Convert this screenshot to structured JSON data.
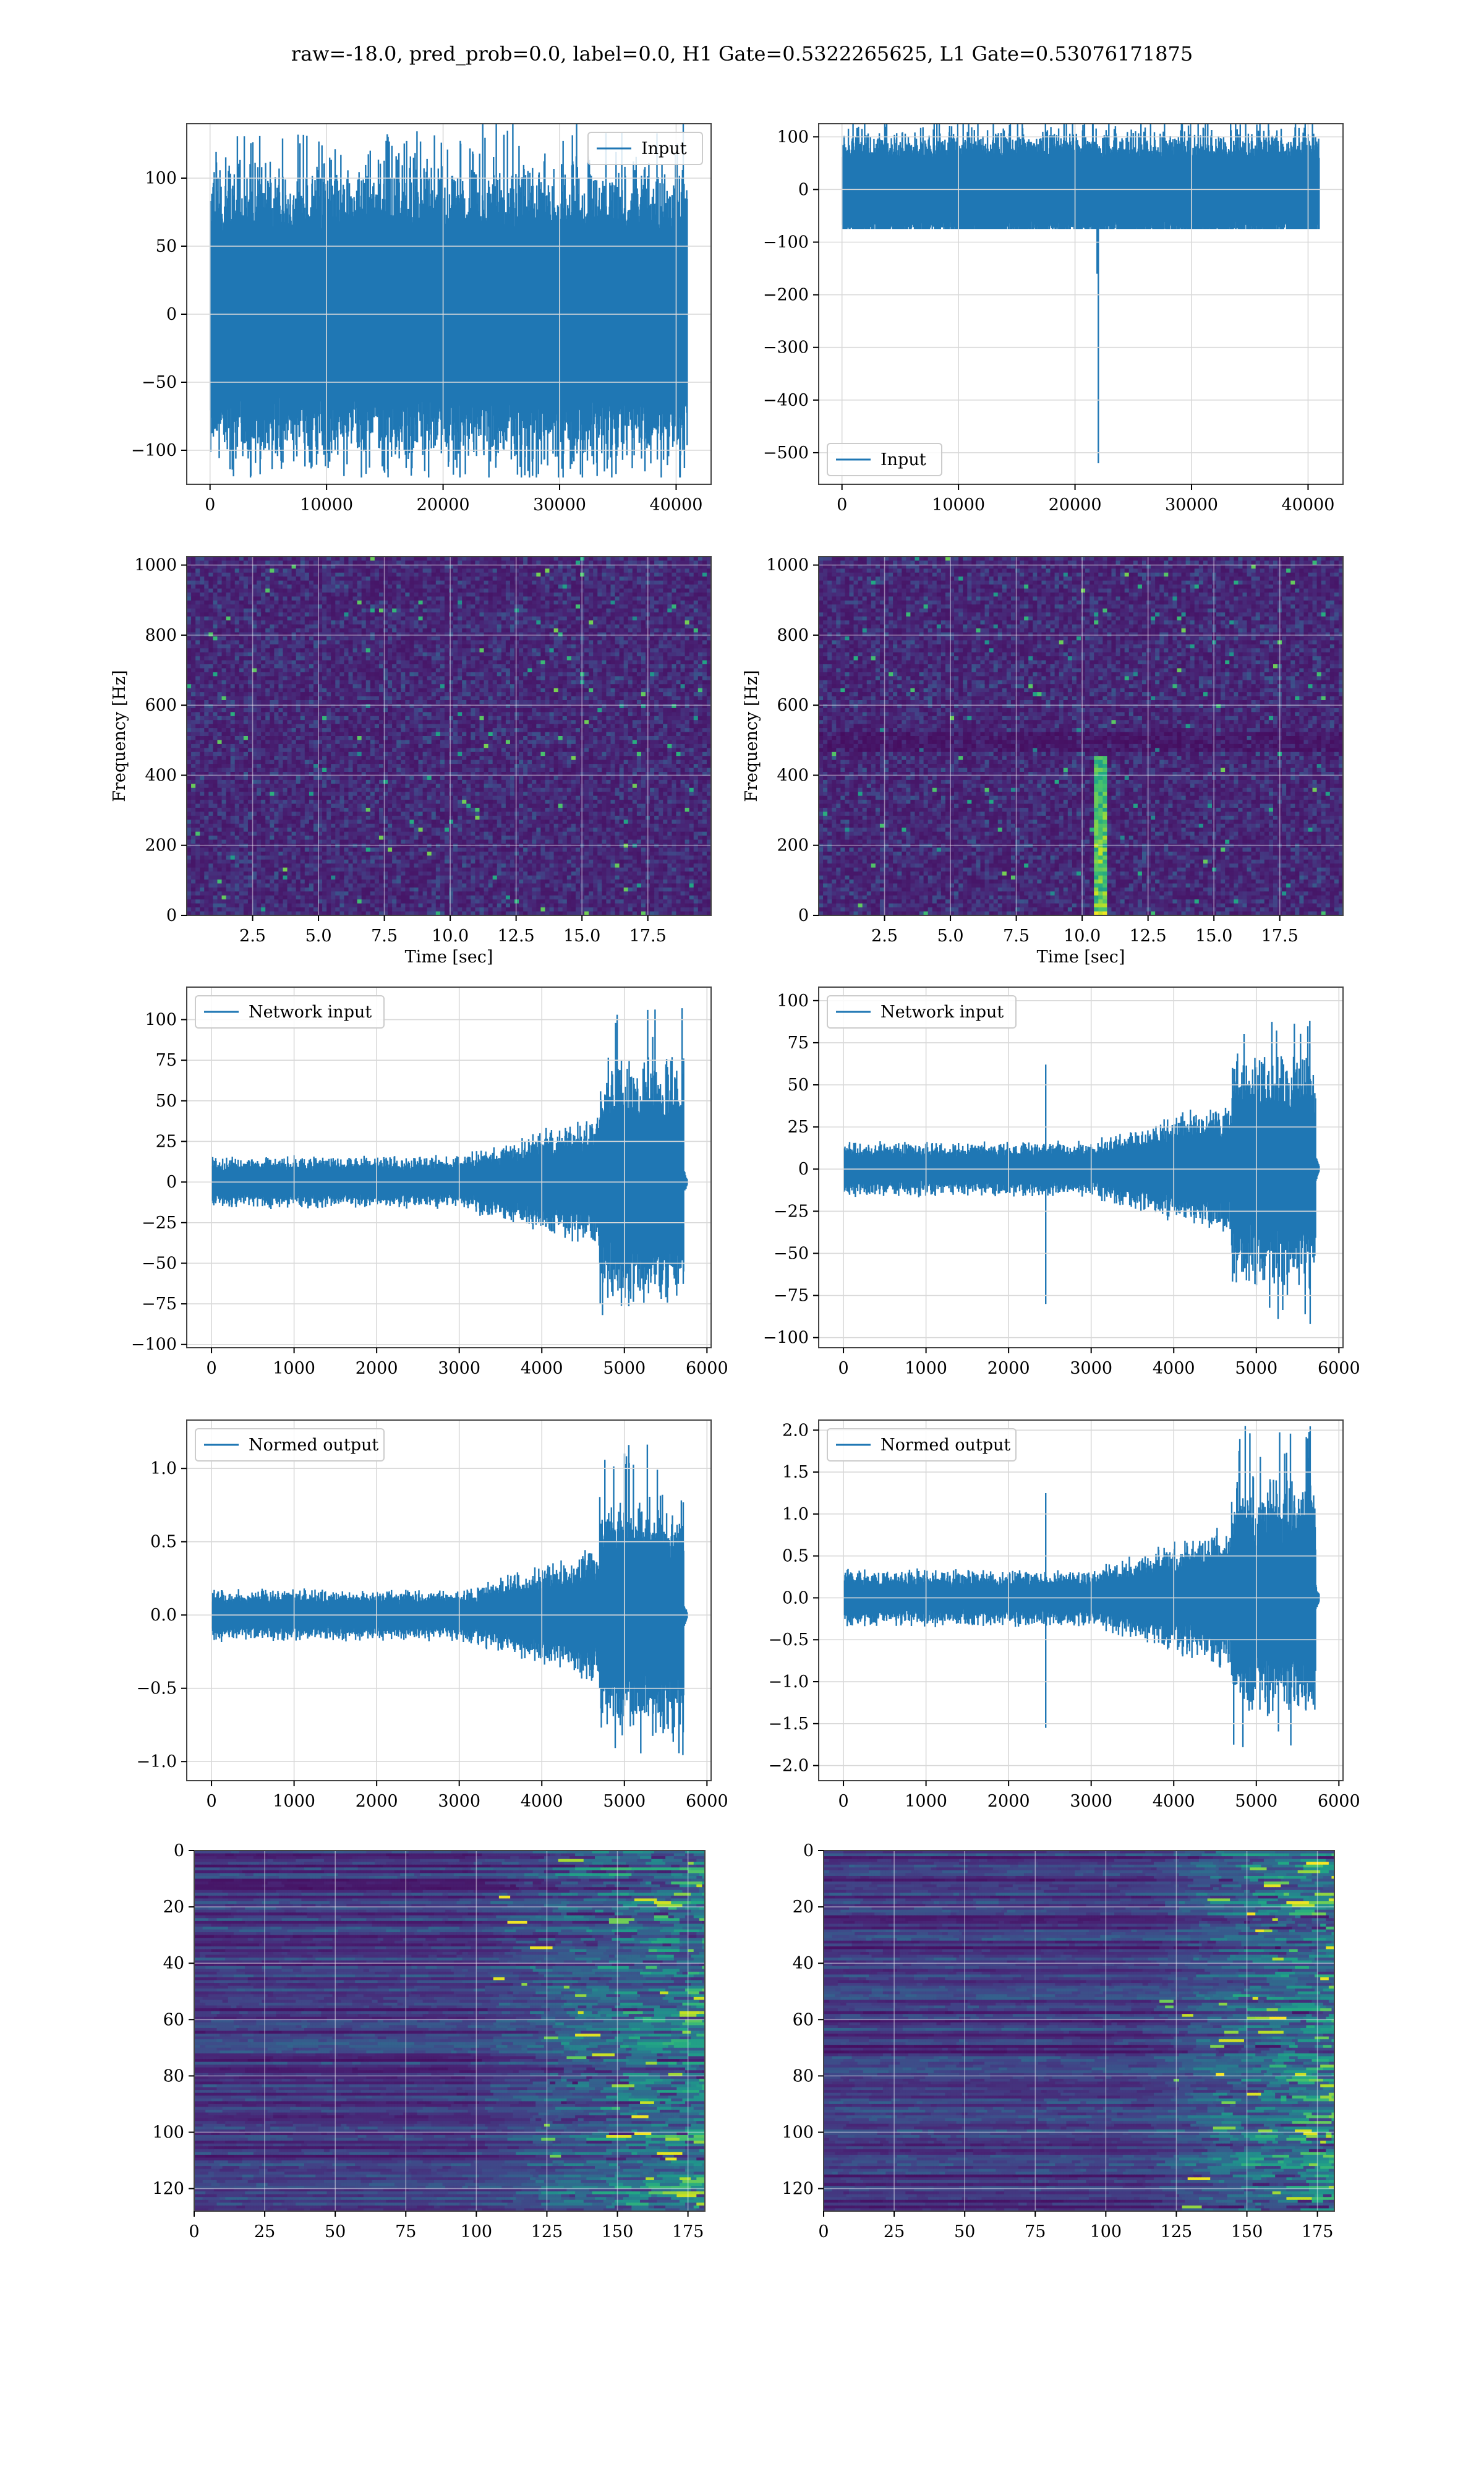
{
  "figure": {
    "title": "raw=-18.0, pred_prob=0.0, label=0.0, H1 Gate=0.5322265625, L1 Gate=0.53076171875"
  },
  "colors": {
    "line": "#1f77b4",
    "grid": "#d9d9d9",
    "frame": "#444444",
    "viridis_low": "#440154",
    "viridis_mid": "#21918c",
    "viridis_high": "#fde725"
  },
  "chart_data": [
    {
      "id": "h1-input",
      "type": "line",
      "series": [
        {
          "name": "Input",
          "style": "dense-noise",
          "n": 40960,
          "center": 0,
          "band": [
            -70,
            70
          ],
          "range": [
            -120,
            135
          ]
        }
      ],
      "xlim": [
        -2000,
        43000
      ],
      "ylim": [
        -125,
        140
      ],
      "xticks": [
        0,
        10000,
        20000,
        30000,
        40000
      ],
      "yticks": [
        -100,
        -50,
        0,
        50,
        100
      ],
      "xticklabels": [
        "0",
        "10000",
        "20000",
        "30000",
        "40000"
      ],
      "yticklabels": [
        "−100",
        "−50",
        "0",
        "50",
        "100"
      ],
      "legend": "upper-right",
      "grid": true,
      "xlabel": "",
      "ylabel": ""
    },
    {
      "id": "l1-input",
      "type": "line",
      "series": [
        {
          "name": "Input",
          "style": "dense-noise-glitch",
          "n": 40960,
          "center": 0,
          "band": [
            -70,
            70
          ],
          "range": [
            -75,
            140
          ],
          "glitch_x": 22000,
          "glitch_y": -520
        }
      ],
      "xlim": [
        -2000,
        43000
      ],
      "ylim": [
        -560,
        125
      ],
      "xticks": [
        0,
        10000,
        20000,
        30000,
        40000
      ],
      "yticks": [
        -500,
        -400,
        -300,
        -200,
        -100,
        0,
        100
      ],
      "xticklabels": [
        "0",
        "10000",
        "20000",
        "30000",
        "40000"
      ],
      "yticklabels": [
        "−500",
        "−400",
        "−300",
        "−200",
        "−100",
        "0",
        "100"
      ],
      "legend": "lower-left",
      "grid": true,
      "xlabel": "",
      "ylabel": ""
    },
    {
      "id": "h1-spectrogram",
      "type": "heatmap",
      "xlim": [
        0,
        19.9
      ],
      "ylim": [
        0,
        1024
      ],
      "xticks": [
        2.5,
        5.0,
        7.5,
        10.0,
        12.5,
        15.0,
        17.5
      ],
      "yticks": [
        0,
        200,
        400,
        600,
        800,
        1000
      ],
      "xticklabels": [
        "2.5",
        "5.0",
        "7.5",
        "10.0",
        "12.5",
        "15.0",
        "17.5"
      ],
      "yticklabels": [
        "0",
        "200",
        "400",
        "600",
        "800",
        "1000"
      ],
      "xlabel": "Time [sec]",
      "ylabel": "Frequency [Hz]",
      "grid": true,
      "feature": "noise"
    },
    {
      "id": "l1-spectrogram",
      "type": "heatmap",
      "xlim": [
        0,
        19.9
      ],
      "ylim": [
        0,
        1024
      ],
      "xticks": [
        2.5,
        5.0,
        7.5,
        10.0,
        12.5,
        15.0,
        17.5
      ],
      "yticks": [
        0,
        200,
        400,
        600,
        800,
        1000
      ],
      "xticklabels": [
        "2.5",
        "5.0",
        "7.5",
        "10.0",
        "12.5",
        "15.0",
        "17.5"
      ],
      "yticklabels": [
        "0",
        "200",
        "400",
        "600",
        "800",
        "1000"
      ],
      "xlabel": "Time [sec]",
      "ylabel": "Frequency [Hz]",
      "grid": true,
      "feature": "glitch",
      "glitch_time": 10.7,
      "glitch_fmax": 450
    },
    {
      "id": "h1-network-input",
      "type": "line",
      "series": [
        {
          "name": "Network input",
          "style": "chirp",
          "n": 5760,
          "baseline": 12,
          "peak_amp": 75,
          "ramp_start": 3000,
          "burst_start": 4700,
          "burst_end": 5720,
          "range": [
            -92,
            108
          ]
        }
      ],
      "xlim": [
        -300,
        6050
      ],
      "ylim": [
        -102,
        120
      ],
      "xticks": [
        0,
        1000,
        2000,
        3000,
        4000,
        5000,
        6000
      ],
      "yticks": [
        -100,
        -75,
        -50,
        -25,
        0,
        25,
        50,
        75,
        100
      ],
      "xticklabels": [
        "0",
        "1000",
        "2000",
        "3000",
        "4000",
        "5000",
        "6000"
      ],
      "yticklabels": [
        "−100",
        "−75",
        "−50",
        "−25",
        "0",
        "25",
        "50",
        "75",
        "100"
      ],
      "legend": "upper-left",
      "grid": true,
      "xlabel": "",
      "ylabel": ""
    },
    {
      "id": "l1-network-input",
      "type": "line",
      "series": [
        {
          "name": "Network input",
          "style": "chirp-spike",
          "n": 5760,
          "baseline": 12,
          "peak_amp": 70,
          "ramp_start": 3000,
          "burst_start": 4700,
          "burst_end": 5720,
          "spike_x": 2450,
          "spike_up": 62,
          "spike_down": -80,
          "range": [
            -98,
            100
          ]
        }
      ],
      "xlim": [
        -300,
        6050
      ],
      "ylim": [
        -106,
        108
      ],
      "xticks": [
        0,
        1000,
        2000,
        3000,
        4000,
        5000,
        6000
      ],
      "yticks": [
        -100,
        -75,
        -50,
        -25,
        0,
        25,
        50,
        75,
        100
      ],
      "xticklabels": [
        "0",
        "1000",
        "2000",
        "3000",
        "4000",
        "5000",
        "6000"
      ],
      "yticklabels": [
        "−100",
        "−75",
        "−50",
        "−25",
        "0",
        "25",
        "50",
        "75",
        "100"
      ],
      "legend": "upper-left",
      "grid": true,
      "xlabel": "",
      "ylabel": ""
    },
    {
      "id": "h1-normed-output",
      "type": "line",
      "series": [
        {
          "name": "Normed output",
          "style": "chirp",
          "n": 5760,
          "baseline": 0.13,
          "peak_amp": 0.8,
          "ramp_start": 3000,
          "burst_start": 4700,
          "burst_end": 5720,
          "range": [
            -1.05,
            1.22
          ]
        }
      ],
      "xlim": [
        -300,
        6050
      ],
      "ylim": [
        -1.13,
        1.33
      ],
      "xticks": [
        0,
        1000,
        2000,
        3000,
        4000,
        5000,
        6000
      ],
      "yticks": [
        -1.0,
        -0.5,
        0.0,
        0.5,
        1.0
      ],
      "xticklabels": [
        "0",
        "1000",
        "2000",
        "3000",
        "4000",
        "5000",
        "6000"
      ],
      "yticklabels": [
        "−1.0",
        "−0.5",
        "0.0",
        "0.5",
        "1.0"
      ],
      "legend": "upper-left",
      "grid": true,
      "xlabel": "",
      "ylabel": ""
    },
    {
      "id": "l1-normed-output",
      "type": "line",
      "series": [
        {
          "name": "Normed output",
          "style": "chirp-spike",
          "n": 5760,
          "baseline": 0.25,
          "peak_amp": 1.4,
          "ramp_start": 3000,
          "burst_start": 4700,
          "burst_end": 5720,
          "spike_x": 2450,
          "spike_up": 1.25,
          "spike_down": -1.55,
          "range": [
            -1.95,
            2.05
          ]
        }
      ],
      "xlim": [
        -300,
        6050
      ],
      "ylim": [
        -2.18,
        2.12
      ],
      "xticks": [
        0,
        1000,
        2000,
        3000,
        4000,
        5000,
        6000
      ],
      "yticks": [
        -2.0,
        -1.5,
        -1.0,
        -0.5,
        0.0,
        0.5,
        1.0,
        1.5,
        2.0
      ],
      "xticklabels": [
        "0",
        "1000",
        "2000",
        "3000",
        "4000",
        "5000",
        "6000"
      ],
      "yticklabels": [
        "−2.0",
        "−1.5",
        "−1.0",
        "−0.5",
        "0.0",
        "0.5",
        "1.0",
        "1.5",
        "2.0"
      ],
      "legend": "upper-left",
      "grid": true,
      "xlabel": "",
      "ylabel": ""
    },
    {
      "id": "h1-feature-map",
      "type": "heatmap",
      "xlim": [
        0,
        181
      ],
      "ylim": [
        128,
        0
      ],
      "xticks": [
        0,
        25,
        50,
        75,
        100,
        125,
        150,
        175
      ],
      "yticks": [
        0,
        20,
        40,
        60,
        80,
        100,
        120
      ],
      "xticklabels": [
        "0",
        "25",
        "50",
        "75",
        "100",
        "125",
        "150",
        "175"
      ],
      "yticklabels": [
        "0",
        "20",
        "40",
        "60",
        "80",
        "100",
        "120"
      ],
      "grid": true,
      "feature": "activations",
      "active_from": 95,
      "xlabel": "",
      "ylabel": ""
    },
    {
      "id": "l1-feature-map",
      "type": "heatmap",
      "xlim": [
        0,
        181
      ],
      "ylim": [
        128,
        0
      ],
      "xticks": [
        0,
        25,
        50,
        75,
        100,
        125,
        150,
        175
      ],
      "yticks": [
        0,
        20,
        40,
        60,
        80,
        100,
        120
      ],
      "xticklabels": [
        "0",
        "25",
        "50",
        "75",
        "100",
        "125",
        "150",
        "175"
      ],
      "yticklabels": [
        "0",
        "20",
        "40",
        "60",
        "80",
        "100",
        "120"
      ],
      "grid": true,
      "feature": "activations",
      "active_from": 110,
      "xlabel": "",
      "ylabel": ""
    }
  ]
}
